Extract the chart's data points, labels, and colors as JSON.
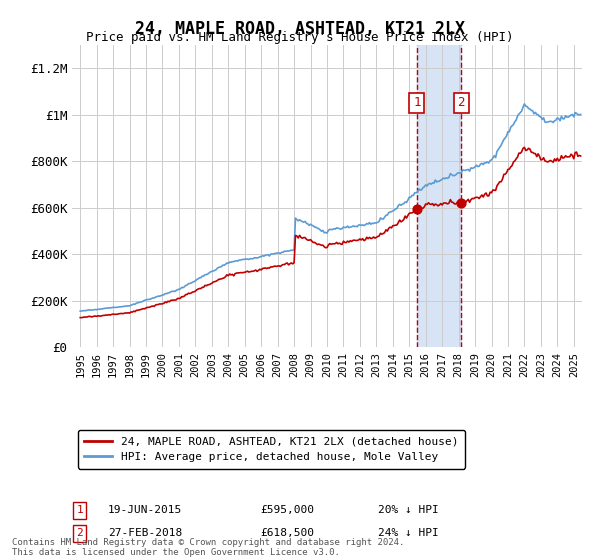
{
  "title": "24, MAPLE ROAD, ASHTEAD, KT21 2LX",
  "subtitle": "Price paid vs. HM Land Registry's House Price Index (HPI)",
  "ylim": [
    0,
    1300000
  ],
  "yticks": [
    0,
    200000,
    400000,
    600000,
    800000,
    1000000,
    1200000
  ],
  "ytick_labels": [
    "£0",
    "£200K",
    "£400K",
    "£600K",
    "£800K",
    "£1M",
    "£1.2M"
  ],
  "hpi_color": "#5b9bd5",
  "price_color": "#c00000",
  "sale1_date": 2015.46,
  "sale1_price": 595000,
  "sale1_label": "19-JUN-2015",
  "sale1_price_label": "£595,000",
  "sale1_hpi_label": "20% ↓ HPI",
  "sale2_date": 2018.15,
  "sale2_price": 618500,
  "sale2_label": "27-FEB-2018",
  "sale2_price_label": "£618,500",
  "sale2_hpi_label": "24% ↓ HPI",
  "legend_label1": "24, MAPLE ROAD, ASHTEAD, KT21 2LX (detached house)",
  "legend_label2": "HPI: Average price, detached house, Mole Valley",
  "footnote": "Contains HM Land Registry data © Crown copyright and database right 2024.\nThis data is licensed under the Open Government Licence v3.0.",
  "background_color": "#ffffff",
  "grid_color": "#cccccc",
  "shade_color": "#d6e4f5"
}
